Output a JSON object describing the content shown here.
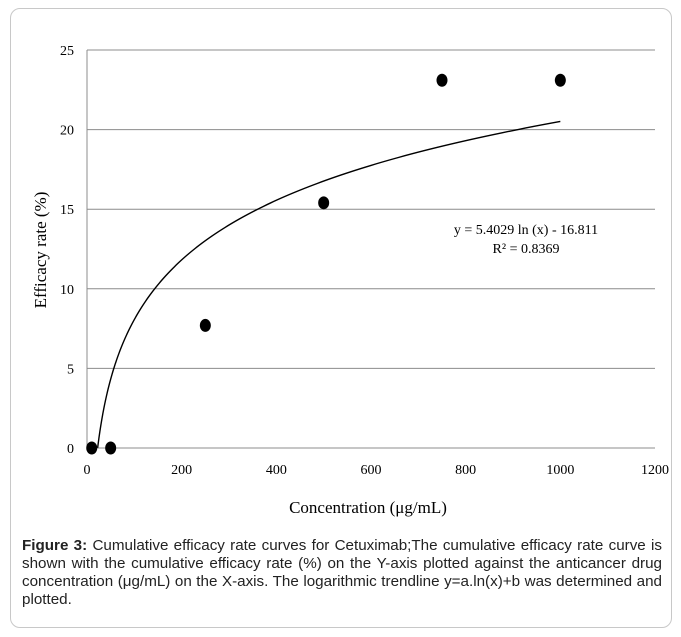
{
  "caption": {
    "label": "Figure 3:",
    "text": "Cumulative efficacy rate curves for Cetuximab;The cumulative efficacy rate curve is shown with the cumulative efficacy rate (%) on the Y-axis plotted against the anticancer drug concentration (μg/mL) on the X-axis. The logarithmic trendline y=a.ln(x)+b was determined and plotted."
  },
  "chart_data": {
    "type": "scatter",
    "xlabel": "Concentration (μg/mL)",
    "ylabel": "Efficacy rate (%)",
    "xlim": [
      0,
      1200
    ],
    "ylim": [
      0,
      25
    ],
    "xticks": [
      0,
      200,
      400,
      600,
      800,
      1000,
      1200
    ],
    "yticks": [
      0,
      5,
      10,
      15,
      20,
      25
    ],
    "grid": "horizontal",
    "legend": "none",
    "points": {
      "x": [
        10,
        50,
        250,
        500,
        750,
        1000
      ],
      "y": [
        0,
        0,
        7.7,
        15.4,
        23.1,
        23.1
      ]
    },
    "trendline": {
      "type": "logarithmic",
      "a": 5.4029,
      "b": -16.811,
      "x_range": [
        22.5,
        1000
      ],
      "equation": "y = 5.4029 ln (x) - 16.811",
      "r_squared": "R² = 0.8369"
    },
    "colors": {
      "points": "#000000",
      "gridline": "#8c8c8c",
      "trendline": "#000000"
    }
  }
}
